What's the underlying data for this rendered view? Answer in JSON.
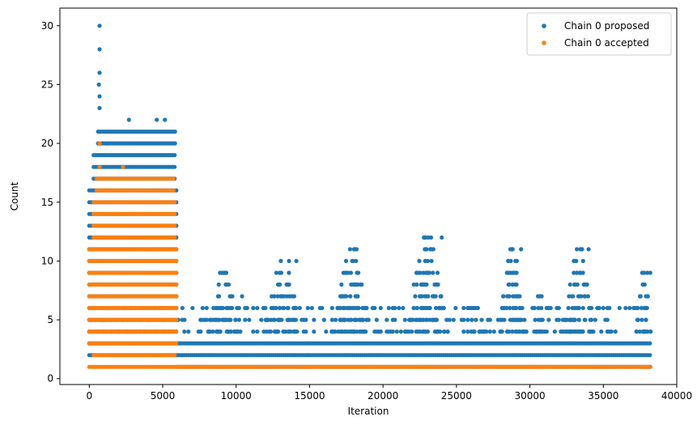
{
  "chart_data": {
    "type": "scatter",
    "title": "",
    "xlabel": "Iteration",
    "ylabel": "Count",
    "xlim": [
      -2000,
      40000
    ],
    "ylim": [
      -0.5,
      31.5
    ],
    "xticks": [
      0,
      5000,
      10000,
      15000,
      20000,
      25000,
      30000,
      35000,
      40000
    ],
    "yticks": [
      0,
      5,
      10,
      15,
      20,
      25,
      30
    ],
    "grid": false,
    "legend_position": "top-right",
    "series": [
      {
        "name": "Chain 0 proposed",
        "color": "#1f77b4",
        "bands": [
          {
            "y": [
              1,
              1
            ],
            "x": [
              5950,
              38300
            ]
          },
          {
            "y": [
              2,
              2
            ],
            "x": [
              0,
              38300
            ]
          },
          {
            "y": [
              3,
              3
            ],
            "x": [
              0,
              38300
            ]
          },
          {
            "y": [
              4,
              4
            ],
            "x": [
              0,
              37900
            ]
          },
          {
            "y": [
              5,
              6
            ],
            "x": [
              0,
              37800
            ]
          },
          {
            "y": [
              4,
              11
            ],
            "x": [
              0,
              6000
            ]
          },
          {
            "y": [
              12,
              16
            ],
            "x": [
              0,
              6000
            ]
          },
          {
            "y": [
              17,
              19
            ],
            "x": [
              300,
              5900
            ]
          },
          {
            "y": [
              20,
              21
            ],
            "x": [
              600,
              5900
            ]
          }
        ],
        "clusters": [
          {
            "x": [
              8000,
              10300
            ],
            "ymax": 9
          },
          {
            "x": [
              11800,
              14500
            ],
            "ymax": 10
          },
          {
            "x": [
              16500,
              19200
            ],
            "ymax": 11
          },
          {
            "x": [
              21500,
              24500
            ],
            "ymax": 12
          },
          {
            "x": [
              26000,
              27500
            ],
            "ymax": 5
          },
          {
            "x": [
              27800,
              29800
            ],
            "ymax": 11
          },
          {
            "x": [
              30200,
              31000
            ],
            "ymax": 7
          },
          {
            "x": [
              32200,
              34500
            ],
            "ymax": 11
          },
          {
            "x": [
              37200,
              38300
            ],
            "ymax": 9
          }
        ],
        "points": [
          {
            "x": 700,
            "y": 30
          },
          {
            "x": 700,
            "y": 28
          },
          {
            "x": 700,
            "y": 26
          },
          {
            "x": 650,
            "y": 25
          },
          {
            "x": 700,
            "y": 24
          },
          {
            "x": 700,
            "y": 23
          },
          {
            "x": 2700,
            "y": 22
          },
          {
            "x": 4600,
            "y": 22
          },
          {
            "x": 5150,
            "y": 22
          },
          {
            "x": 1200,
            "y": 20
          },
          {
            "x": 18200,
            "y": 11
          },
          {
            "x": 24000,
            "y": 12
          },
          {
            "x": 29400,
            "y": 11
          },
          {
            "x": 34000,
            "y": 11
          },
          {
            "x": 13600,
            "y": 10
          },
          {
            "x": 14100,
            "y": 10
          },
          {
            "x": 9300,
            "y": 9
          },
          {
            "x": 8900,
            "y": 9
          },
          {
            "x": 38200,
            "y": 9
          },
          {
            "x": 38000,
            "y": 9
          },
          {
            "x": 30800,
            "y": 7
          },
          {
            "x": 10400,
            "y": 7
          }
        ]
      },
      {
        "name": "Chain 0 accepted",
        "color": "#ff7f0e",
        "bands": [
          {
            "y": [
              1,
              1
            ],
            "x": [
              0,
              38300
            ]
          },
          {
            "y": [
              2,
              2
            ],
            "x": [
              300,
              5900
            ]
          },
          {
            "y": [
              3,
              11
            ],
            "x": [
              0,
              6000
            ]
          },
          {
            "y": [
              12,
              15
            ],
            "x": [
              300,
              5900
            ]
          },
          {
            "y": [
              16,
              17
            ],
            "x": [
              500,
              5800
            ]
          }
        ],
        "points": [
          {
            "x": 700,
            "y": 20
          },
          {
            "x": 2300,
            "y": 18
          },
          {
            "x": 700,
            "y": 18
          }
        ]
      }
    ]
  }
}
